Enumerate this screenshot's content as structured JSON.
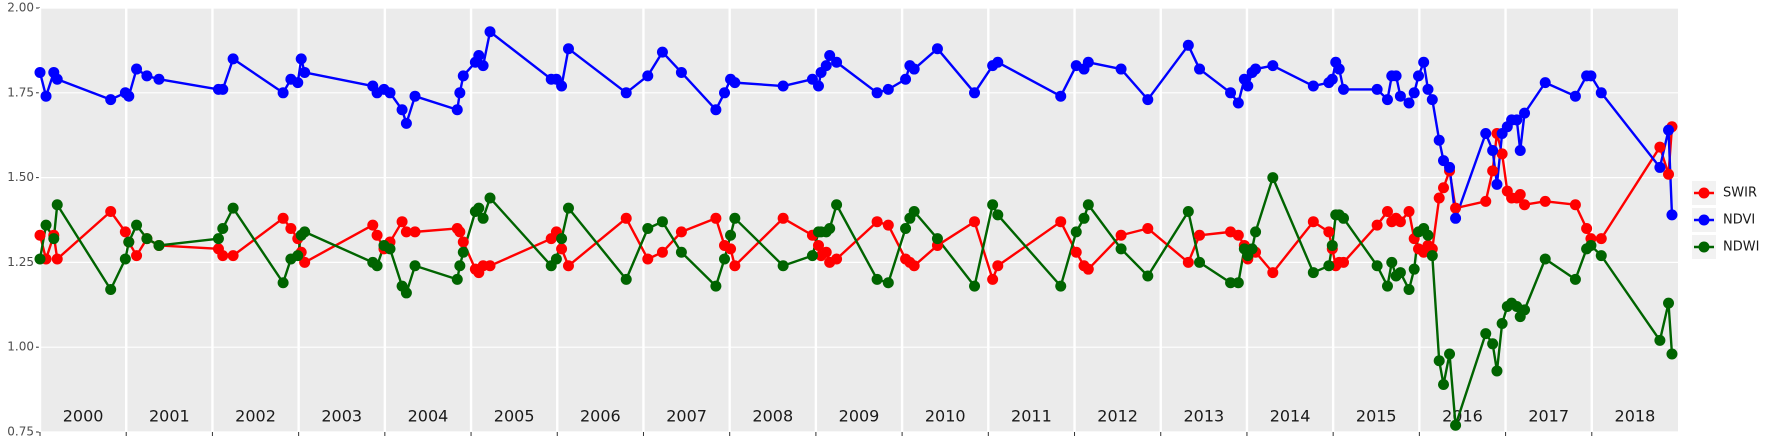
{
  "chart_data": {
    "type": "line",
    "x": [
      2000.0,
      2000.07,
      2000.16,
      2000.2,
      2000.82,
      2000.99,
      2001.03,
      2001.12,
      2001.24,
      2001.38,
      2002.07,
      2002.12,
      2002.24,
      2002.82,
      2002.91,
      2002.99,
      2003.03,
      2003.07,
      2003.86,
      2003.91,
      2003.99,
      2004.06,
      2004.2,
      2004.25,
      2004.35,
      2004.84,
      2004.87,
      2004.91,
      2005.05,
      2005.09,
      2005.14,
      2005.22,
      2005.93,
      2005.99,
      2006.05,
      2006.13,
      2006.8,
      2007.05,
      2007.22,
      2007.44,
      2007.84,
      2007.94,
      2008.01,
      2008.06,
      2008.62,
      2008.96,
      2009.03,
      2009.06,
      2009.12,
      2009.16,
      2009.24,
      2009.71,
      2009.84,
      2010.04,
      2010.09,
      2010.14,
      2010.41,
      2010.84,
      2011.05,
      2011.11,
      2011.84,
      2012.02,
      2012.11,
      2012.16,
      2012.54,
      2012.85,
      2013.32,
      2013.45,
      2013.81,
      2013.9,
      2013.97,
      2014.01,
      2014.06,
      2014.1,
      2014.3,
      2014.77,
      2014.95,
      2014.99,
      2015.03,
      2015.07,
      2015.12,
      2015.51,
      2015.63,
      2015.68,
      2015.73,
      2015.78,
      2015.88,
      2015.94,
      2015.99,
      2016.05,
      2016.1,
      2016.15,
      2016.23,
      2016.28,
      2016.35,
      2016.42,
      2016.77,
      2016.85,
      2016.9,
      2016.96,
      2017.02,
      2017.07,
      2017.13,
      2017.17,
      2017.22,
      2017.46,
      2017.81,
      2017.94,
      2017.99,
      2018.11,
      2018.79,
      2018.89,
      2018.93
    ],
    "series": [
      {
        "name": "SWIR",
        "color": "#ff0000",
        "values": [
          1.33,
          1.26,
          1.33,
          1.26,
          1.4,
          1.34,
          1.31,
          1.27,
          1.32,
          1.3,
          1.29,
          1.27,
          1.27,
          1.38,
          1.35,
          1.32,
          1.28,
          1.25,
          1.36,
          1.33,
          1.29,
          1.31,
          1.37,
          1.34,
          1.34,
          1.35,
          1.34,
          1.31,
          1.23,
          1.22,
          1.24,
          1.24,
          1.32,
          1.34,
          1.29,
          1.24,
          1.38,
          1.26,
          1.28,
          1.34,
          1.38,
          1.3,
          1.29,
          1.24,
          1.38,
          1.33,
          1.3,
          1.27,
          1.28,
          1.25,
          1.26,
          1.37,
          1.36,
          1.26,
          1.25,
          1.24,
          1.3,
          1.37,
          1.2,
          1.24,
          1.37,
          1.28,
          1.24,
          1.23,
          1.33,
          1.35,
          1.25,
          1.33,
          1.34,
          1.33,
          1.3,
          1.26,
          1.28,
          1.28,
          1.22,
          1.37,
          1.34,
          1.29,
          1.24,
          1.25,
          1.25,
          1.36,
          1.4,
          1.37,
          1.38,
          1.37,
          1.4,
          1.32,
          1.29,
          1.28,
          1.3,
          1.29,
          1.44,
          1.47,
          1.52,
          1.41,
          1.43,
          1.52,
          1.63,
          1.57,
          1.46,
          1.44,
          1.44,
          1.45,
          1.42,
          1.43,
          1.42,
          1.35,
          1.32,
          1.32,
          1.59,
          1.51,
          1.65
        ]
      },
      {
        "name": "NDVI",
        "color": "#0000ff",
        "values": [
          1.81,
          1.74,
          1.81,
          1.79,
          1.73,
          1.75,
          1.74,
          1.82,
          1.8,
          1.79,
          1.76,
          1.76,
          1.85,
          1.75,
          1.79,
          1.78,
          1.85,
          1.81,
          1.77,
          1.75,
          1.76,
          1.75,
          1.7,
          1.66,
          1.74,
          1.7,
          1.75,
          1.8,
          1.84,
          1.86,
          1.83,
          1.93,
          1.79,
          1.79,
          1.77,
          1.88,
          1.75,
          1.8,
          1.87,
          1.81,
          1.7,
          1.75,
          1.79,
          1.78,
          1.77,
          1.79,
          1.77,
          1.81,
          1.83,
          1.86,
          1.84,
          1.75,
          1.76,
          1.79,
          1.83,
          1.82,
          1.88,
          1.75,
          1.83,
          1.84,
          1.74,
          1.83,
          1.82,
          1.84,
          1.82,
          1.73,
          1.89,
          1.82,
          1.75,
          1.72,
          1.79,
          1.77,
          1.81,
          1.82,
          1.83,
          1.77,
          1.78,
          1.79,
          1.84,
          1.82,
          1.76,
          1.76,
          1.73,
          1.8,
          1.8,
          1.74,
          1.72,
          1.75,
          1.8,
          1.84,
          1.76,
          1.73,
          1.61,
          1.55,
          1.53,
          1.38,
          1.63,
          1.58,
          1.48,
          1.63,
          1.65,
          1.67,
          1.67,
          1.58,
          1.69,
          1.78,
          1.74,
          1.8,
          1.8,
          1.75,
          1.53,
          1.64,
          1.39
        ]
      },
      {
        "name": "NDWI",
        "color": "#006400",
        "values": [
          1.26,
          1.36,
          1.32,
          1.42,
          1.17,
          1.26,
          1.31,
          1.36,
          1.32,
          1.3,
          1.32,
          1.35,
          1.41,
          1.19,
          1.26,
          1.27,
          1.33,
          1.34,
          1.25,
          1.24,
          1.3,
          1.29,
          1.18,
          1.16,
          1.24,
          1.2,
          1.24,
          1.28,
          1.4,
          1.41,
          1.38,
          1.44,
          1.24,
          1.26,
          1.32,
          1.41,
          1.2,
          1.35,
          1.37,
          1.28,
          1.18,
          1.26,
          1.33,
          1.38,
          1.24,
          1.27,
          1.34,
          1.34,
          1.34,
          1.35,
          1.42,
          1.2,
          1.19,
          1.35,
          1.38,
          1.4,
          1.32,
          1.18,
          1.42,
          1.39,
          1.18,
          1.34,
          1.38,
          1.42,
          1.29,
          1.21,
          1.4,
          1.25,
          1.19,
          1.19,
          1.29,
          1.27,
          1.29,
          1.34,
          1.5,
          1.22,
          1.24,
          1.3,
          1.39,
          1.39,
          1.38,
          1.24,
          1.18,
          1.25,
          1.21,
          1.22,
          1.17,
          1.23,
          1.34,
          1.35,
          1.33,
          1.27,
          0.96,
          0.89,
          0.98,
          0.77,
          1.04,
          1.01,
          0.93,
          1.07,
          1.12,
          1.13,
          1.12,
          1.09,
          1.11,
          1.26,
          1.2,
          1.29,
          1.3,
          1.27,
          1.02,
          1.13,
          0.98
        ]
      }
    ],
    "xlim": [
      2000,
      2019
    ],
    "xticks": [
      {
        "value": 2000,
        "label": "2000"
      },
      {
        "value": 2001,
        "label": "2001"
      },
      {
        "value": 2002,
        "label": "2002"
      },
      {
        "value": 2003,
        "label": "2003"
      },
      {
        "value": 2004,
        "label": "2004"
      },
      {
        "value": 2005,
        "label": "2005"
      },
      {
        "value": 2006,
        "label": "2006"
      },
      {
        "value": 2007,
        "label": "2007"
      },
      {
        "value": 2008,
        "label": "2008"
      },
      {
        "value": 2009,
        "label": "2009"
      },
      {
        "value": 2010,
        "label": "2010"
      },
      {
        "value": 2011,
        "label": "2011"
      },
      {
        "value": 2012,
        "label": "2012"
      },
      {
        "value": 2013,
        "label": "2013"
      },
      {
        "value": 2014,
        "label": "2014"
      },
      {
        "value": 2015,
        "label": "2015"
      },
      {
        "value": 2016,
        "label": "2016"
      },
      {
        "value": 2017,
        "label": "2017"
      },
      {
        "value": 2018,
        "label": "2018"
      }
    ],
    "ylim": [
      0.75,
      2.0
    ],
    "yticks": [
      0.75,
      {
        "value": 1.0,
        "label": "1.00"
      },
      1.25,
      {
        "value": 1.5,
        "label": "1.50"
      },
      1.75,
      {
        "value": 2.0,
        "label": "2.00"
      }
    ],
    "grid": true,
    "legend": "right"
  }
}
